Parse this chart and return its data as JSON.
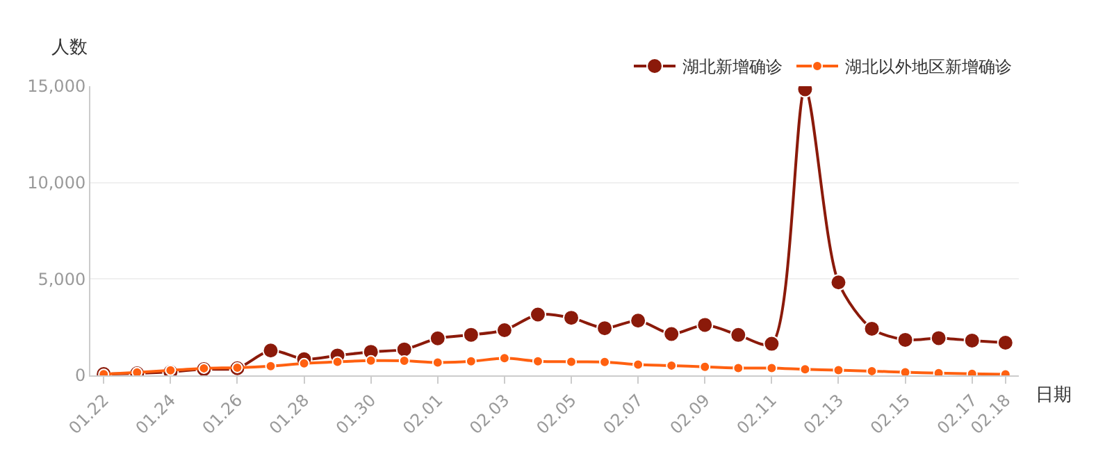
{
  "chart_data": {
    "type": "line",
    "xlabel": "日期",
    "ylabel": "人数",
    "categories": [
      "01.22",
      null,
      "01.24",
      null,
      "01.26",
      null,
      "01.28",
      null,
      "01.30",
      null,
      "02.01",
      null,
      "02.03",
      null,
      "02.05",
      null,
      "02.07",
      null,
      "02.09",
      null,
      "02.11",
      null,
      "02.13",
      null,
      "02.15",
      null,
      "02.17",
      "02.18"
    ],
    "series": [
      {
        "name": "湖北新增确诊",
        "color": "#8b1a0a",
        "values": [
          69,
          105,
          180,
          323,
          371,
          1291,
          840,
          1032,
          1220,
          1347,
          1921,
          2103,
          2345,
          3156,
          2987,
          2447,
          2841,
          2147,
          2618,
          2097,
          1638,
          14840,
          4823,
          2420,
          1843,
          1933,
          1807,
          1693
        ]
      },
      {
        "name": "湖北以外地区新增确诊",
        "color": "#ff6010",
        "values": [
          62,
          154,
          264,
          365,
          398,
          480,
          619,
          705,
          762,
          755,
          669,
          726,
          890,
          731,
          707,
          696,
          558,
          509,
          444,
          381,
          377,
          312,
          267,
          221,
          166,
          115,
          79,
          56
        ]
      }
    ],
    "ylim": [
      0,
      15000
    ],
    "yticks": [
      0,
      {
        "value": 5000,
        "label": "5,000"
      },
      {
        "value": 10000,
        "label": "10,000"
      },
      {
        "value": 15000,
        "label": "15,000"
      }
    ],
    "grid": "y",
    "legend": "top right",
    "marker": "circle",
    "line_style": "solid"
  }
}
